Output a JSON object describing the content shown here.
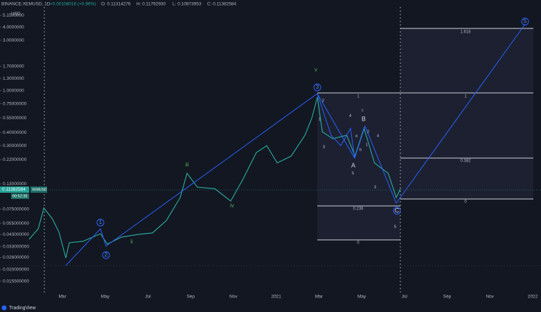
{
  "header": {
    "symbol": "BINANCE:XEMUSD, 1D",
    "open": "O: 0.11314276",
    "high": "H: 0.11792930",
    "low": "L: 0.10873953",
    "close": "C: 0.11382584",
    "change": "+0.00108016 (+0.96%)",
    "currency": "USD"
  },
  "price_tag": {
    "price": "0.11382584",
    "timer": "00:52:38",
    "pair": "XEMUSD"
  },
  "fib_labels": {
    "right": [
      "1.618",
      "1",
      "0.382",
      "0"
    ],
    "left": [
      "1",
      "0.236",
      "0"
    ]
  },
  "wave_labels": {
    "circled": [
      "1",
      "2",
      "3",
      "5"
    ],
    "corrective": [
      "A",
      "B",
      "C"
    ],
    "roman": [
      "ii",
      "iii",
      "iv",
      "v"
    ],
    "minor": [
      "2",
      "1",
      "3",
      "4",
      "5",
      "c",
      "a",
      "b",
      "4",
      "3",
      "5",
      "2",
      "1"
    ]
  },
  "footer": {
    "brand": "TradingView"
  },
  "chart_data": {
    "type": "line",
    "log_scale": true,
    "color": "#26a69a",
    "series": [
      {
        "name": "XEMUSD",
        "color": "#26a69a",
        "x": [
          0.44,
          0.87,
          1.13,
          1.52,
          1.84,
          2.16,
          2.32,
          2.97,
          3.78,
          4.1,
          4.75,
          5.56,
          6.21,
          6.86,
          7.51,
          7.83,
          8.32,
          9.13,
          9.87,
          10.42,
          11.07,
          11.56,
          12.05,
          12.7,
          13.35,
          13.67,
          13.93,
          14.16,
          14.65,
          15.3,
          15.69,
          16.11,
          16.6,
          17.24,
          17.62,
          17.81
        ],
        "values": [
          0.0388,
          0.0488,
          0.0767,
          0.0611,
          0.0452,
          0.0258,
          0.036,
          0.0371,
          0.0438,
          0.0349,
          0.0406,
          0.0432,
          0.0445,
          0.0583,
          0.0964,
          0.1637,
          0.1208,
          0.1172,
          0.0893,
          0.1406,
          0.2576,
          0.2999,
          0.2055,
          0.2389,
          0.3767,
          0.5495,
          0.867,
          0.4063,
          0.3491,
          0.3767,
          0.2389,
          0.4385,
          0.2055,
          0.1637,
          0.0964,
          0.1172
        ]
      }
    ],
    "xlim": [
      -0.92,
      24.39
    ],
    "xticks": [
      {
        "value": 2,
        "label": "Mar"
      },
      {
        "value": 4,
        "label": "May"
      },
      {
        "value": 6,
        "label": "Jul"
      },
      {
        "value": 8,
        "label": "Sep"
      },
      {
        "value": 10,
        "label": "Nov"
      },
      {
        "value": 12,
        "label": "2021"
      },
      {
        "value": 14,
        "label": "Mar"
      },
      {
        "value": 16,
        "label": "May"
      },
      {
        "value": 18,
        "label": "Jul"
      },
      {
        "value": 20,
        "label": "Sep"
      },
      {
        "value": 22,
        "label": "Nov"
      },
      {
        "value": 24,
        "label": "2022"
      }
    ],
    "ylim": [
      0.01156,
      7.23
    ],
    "yticks": [
      {
        "value": 5.15,
        "label": "5.1500000"
      },
      {
        "value": 4,
        "label": "4.0000000"
      },
      {
        "value": 3,
        "label": "3.0000000"
      },
      {
        "value": 1.7,
        "label": "1.7000000"
      },
      {
        "value": 1.3,
        "label": "1.3000000"
      },
      {
        "value": 1,
        "label": "1.0000000"
      },
      {
        "value": 0.75,
        "label": "0.75000000"
      },
      {
        "value": 0.55,
        "label": "0.55000000"
      },
      {
        "value": 0.4,
        "label": "0.40000000"
      },
      {
        "value": 0.3,
        "label": "0.30000000"
      },
      {
        "value": 0.22,
        "label": "0.22000000"
      },
      {
        "value": 0.13,
        "label": "0.13000000"
      },
      {
        "value": 0.075,
        "label": "0.075000000"
      },
      {
        "value": 0.055,
        "label": "0.055000000"
      },
      {
        "value": 0.043,
        "label": "0.043000000"
      },
      {
        "value": 0.033,
        "label": "0.033000000"
      },
      {
        "value": 0.026,
        "label": "0.026000000"
      },
      {
        "value": 0.02,
        "label": "0.020000000"
      },
      {
        "value": 0.0155,
        "label": "0.015500000"
      }
    ]
  }
}
